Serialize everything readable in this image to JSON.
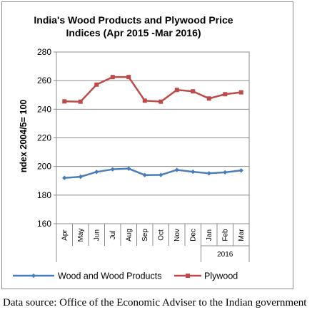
{
  "chart_data": {
    "type": "line",
    "title_lines": [
      "India's Wood Products and Plywood Price",
      "Indices (Apr 2015 -Mar 2016)"
    ],
    "ylabel": "ndex 2004/5= 100",
    "ylim": [
      160,
      280
    ],
    "yticks": [
      "160",
      "180",
      "200",
      "220",
      "240",
      "260",
      "280"
    ],
    "categories": [
      "Apr",
      "May",
      "Jun",
      "Jul",
      "Aug",
      "Sep",
      "Oct",
      "Nov",
      "Dec",
      "Jan",
      "Feb",
      "Mar"
    ],
    "year_label": "2016",
    "grid": true,
    "legend_position": "bottom",
    "series": [
      {
        "name": "Wood and Wood Products",
        "color": "#4a7ebb",
        "values": [
          192.0,
          192.8,
          196.2,
          198.0,
          198.5,
          194.0,
          194.1,
          197.6,
          196.3,
          195.2,
          195.9,
          197.2
        ]
      },
      {
        "name": "Plywood",
        "color": "#be4b48",
        "values": [
          245.5,
          245.3,
          257.2,
          262.5,
          262.5,
          246.0,
          245.3,
          253.5,
          252.5,
          247.5,
          250.5,
          251.8
        ]
      }
    ]
  },
  "caption": "Data source: Office of the Economic Adviser to the Indian government"
}
